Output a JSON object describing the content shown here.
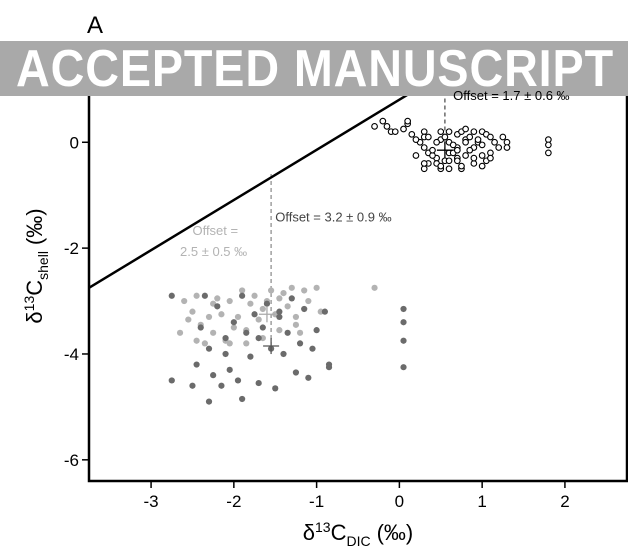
{
  "panel_label": "A",
  "watermark": "ACCEPTED MANUSCRIPT",
  "colors": {
    "dark_gray": "#6b6b6b",
    "light_gray": "#b3b3b3",
    "open_marker": "#000000",
    "banner": "#a9a9a9"
  },
  "chart_data": {
    "type": "scatter",
    "xlabel": {
      "symbol": "δ",
      "sup": "13",
      "main": "C",
      "sub": "DIC",
      "unit": "(‰)"
    },
    "ylabel": {
      "symbol": "δ",
      "sup": "13",
      "main": "C",
      "sub": "shell",
      "unit": "(‰)"
    },
    "xlim": [
      -3.75,
      2.75
    ],
    "ylim": [
      -6.4,
      1.8
    ],
    "xticks": [
      -3,
      -2,
      -1,
      0,
      1,
      2
    ],
    "yticks": [
      -6,
      -4,
      -2,
      0
    ],
    "xtick_labels": [
      "-3",
      "-2",
      "-1",
      "0",
      "1",
      "2"
    ],
    "ytick_labels": [
      "-6",
      "-4",
      "-2",
      "0"
    ],
    "grid": false,
    "reference_line": {
      "x": [
        -3.75,
        1.05
      ],
      "y": [
        -2.75,
        1.8
      ]
    },
    "annotations": [
      {
        "text": "Offset = 1.7 ± 0.6 ‰",
        "color": "#000000",
        "x": 0.65,
        "y": 0.8
      },
      {
        "text": "Offset = 3.2 ± 0.9 ‰",
        "color": "#444444",
        "x": -1.5,
        "y": -1.5
      },
      {
        "text": "Offset =",
        "color": "#b3b3b3",
        "x": -2.5,
        "y": -1.75
      },
      {
        "text": "2.5 ± 0.5 ‰",
        "color": "#b3b3b3",
        "x": -2.65,
        "y": -2.15
      }
    ],
    "offset_lines": [
      {
        "x": 0.55,
        "y": [
          1.62,
          -0.15
        ],
        "color": "#444444"
      },
      {
        "x": -1.55,
        "y": [
          -0.6,
          -3.85
        ],
        "color": "#888888"
      }
    ],
    "mean_markers": [
      {
        "x": 0.55,
        "y": -0.15,
        "color": "#000000"
      },
      {
        "x": -1.55,
        "y": -3.85,
        "color": "#555555"
      },
      {
        "x": -1.6,
        "y": -3.25,
        "color": "#aaaaaa"
      }
    ],
    "series": [
      {
        "marker": "open",
        "color": "#000000",
        "x": [
          -0.3,
          -0.2,
          -0.15,
          -0.1,
          0.1,
          0.1,
          0.3,
          0.3,
          0.25,
          0.3,
          0.35,
          0.35,
          0.3,
          0.45,
          0.45,
          0.5,
          0.5,
          0.5,
          0.6,
          0.6,
          0.6,
          0.55,
          0.6,
          0.7,
          0.7,
          0.7,
          0.75,
          0.75,
          0.8,
          0.8,
          0.8,
          0.85,
          0.9,
          0.9,
          0.9,
          0.95,
          1.0,
          1.0,
          1.0,
          1.05,
          1.05,
          1.1,
          1.1,
          1.1,
          1.15,
          1.2,
          1.25,
          1.3,
          1.3,
          0.4,
          0.65,
          0.85,
          1.8,
          1.8,
          1.8,
          -0.05,
          0.05,
          0.15,
          0.2,
          0.35,
          0.45,
          0.55,
          0.65,
          0.7,
          0.75,
          0.9,
          0.95,
          1.0,
          0.2,
          0.3,
          0.4,
          0.5,
          0.6,
          0.7,
          0.8
        ],
        "y": [
          0.3,
          0.4,
          0.3,
          0.2,
          0.35,
          0.4,
          0.2,
          0.1,
          0.0,
          -0.1,
          -0.2,
          -0.4,
          -0.5,
          -0.3,
          -0.4,
          0.2,
          0.05,
          -0.5,
          0.2,
          0.0,
          -0.2,
          -0.35,
          -0.5,
          0.15,
          -0.1,
          -0.3,
          0.2,
          -0.5,
          0.25,
          0.05,
          -0.25,
          0.1,
          0.2,
          -0.1,
          -0.4,
          0.0,
          0.2,
          -0.05,
          -0.25,
          0.15,
          -0.35,
          0.1,
          -0.2,
          -0.3,
          0.0,
          -0.1,
          0.1,
          0.0,
          -0.1,
          -0.25,
          -0.05,
          -0.15,
          0.05,
          -0.05,
          -0.2,
          0.2,
          0.25,
          0.15,
          0.05,
          0.1,
          0.0,
          0.1,
          -0.2,
          -0.35,
          -0.45,
          -0.3,
          0.05,
          -0.45,
          -0.25,
          -0.4,
          -0.15,
          -0.45,
          -0.35,
          -0.15,
          0.0
        ]
      },
      {
        "marker": "filled",
        "color": "#b3b3b3",
        "x": [
          -2.65,
          -2.6,
          -2.55,
          -2.5,
          -2.45,
          -2.4,
          -2.35,
          -2.3,
          -2.25,
          -2.2,
          -2.15,
          -2.1,
          -2.05,
          -2.0,
          -1.95,
          -1.9,
          -1.85,
          -1.8,
          -1.75,
          -1.7,
          -1.65,
          -1.6,
          -1.55,
          -1.5,
          -1.45,
          -1.4,
          -1.35,
          -1.3,
          -1.25,
          -1.2,
          -1.15,
          -1.1,
          -1.0,
          -0.95,
          -0.3,
          -2.45,
          -2.25,
          -2.05,
          -1.85,
          -1.65,
          -1.45,
          -1.25
        ],
        "y": [
          -3.6,
          -3.0,
          -3.35,
          -3.2,
          -2.9,
          -3.45,
          -3.8,
          -3.3,
          -3.6,
          -2.95,
          -3.25,
          -3.75,
          -3.0,
          -3.5,
          -3.3,
          -2.8,
          -3.8,
          -3.05,
          -2.9,
          -3.35,
          -3.7,
          -3.0,
          -2.8,
          -3.25,
          -3.55,
          -2.85,
          -3.1,
          -2.75,
          -3.3,
          -3.6,
          -2.8,
          -3.0,
          -2.75,
          -3.2,
          -2.75,
          -3.75,
          -3.05,
          -3.8,
          -3.55,
          -3.15,
          -2.95,
          -3.45
        ]
      },
      {
        "marker": "filled",
        "color": "#6b6b6b",
        "x": [
          -2.75,
          -2.75,
          -2.5,
          -2.45,
          -2.4,
          -2.35,
          -2.3,
          -2.25,
          -2.2,
          -2.15,
          -2.1,
          -2.05,
          -2.0,
          -1.95,
          -1.9,
          -1.85,
          -1.8,
          -1.75,
          -1.7,
          -1.65,
          -1.6,
          -1.55,
          -1.5,
          -1.45,
          -1.4,
          -1.35,
          -1.3,
          -1.25,
          -1.2,
          -1.15,
          -1.1,
          -1.05,
          -1.0,
          -0.9,
          -0.85,
          -0.85,
          0.05,
          0.05,
          0.05,
          0.05,
          -2.1,
          -1.9,
          -1.7,
          -1.45,
          -2.3
        ],
        "y": [
          -2.9,
          -4.5,
          -4.6,
          -4.2,
          -3.5,
          -2.9,
          -3.9,
          -4.4,
          -3.1,
          -4.6,
          -3.7,
          -4.3,
          -3.4,
          -4.5,
          -2.9,
          -3.6,
          -4.05,
          -3.25,
          -4.55,
          -3.5,
          -3.05,
          -3.9,
          -4.65,
          -3.3,
          -4.0,
          -3.6,
          -2.95,
          -4.35,
          -3.8,
          -3.15,
          -4.45,
          -3.9,
          -3.55,
          -3.2,
          -4.2,
          -4.25,
          -3.15,
          -3.4,
          -3.75,
          -4.25,
          -4.0,
          -4.85,
          -3.7,
          -3.2,
          -4.9
        ]
      }
    ]
  }
}
